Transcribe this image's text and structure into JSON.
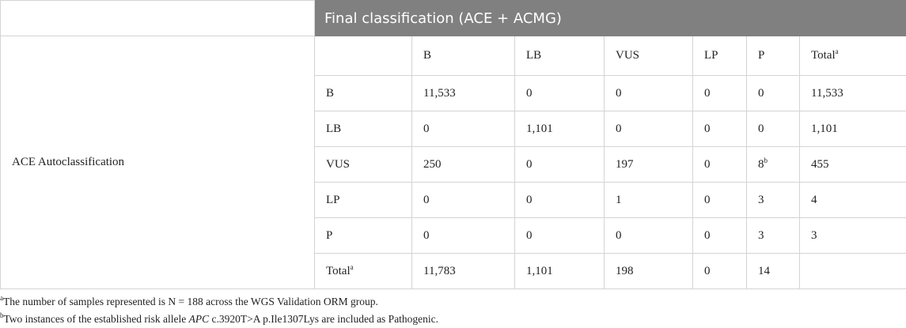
{
  "table": {
    "column_group_header": "Final classification (ACE + ACMG)",
    "row_group_header": "ACE Autoclassification",
    "columns": [
      {
        "text": "B"
      },
      {
        "text": "LB"
      },
      {
        "text": "VUS"
      },
      {
        "text": "LP"
      },
      {
        "text": "P"
      },
      {
        "text": "Total",
        "sup": "a"
      }
    ],
    "rows": [
      {
        "label": {
          "text": "B"
        },
        "cells": [
          {
            "text": "11,533"
          },
          {
            "text": "0"
          },
          {
            "text": "0"
          },
          {
            "text": "0"
          },
          {
            "text": "0"
          },
          {
            "text": "11,533"
          }
        ]
      },
      {
        "label": {
          "text": "LB"
        },
        "cells": [
          {
            "text": "0"
          },
          {
            "text": "1,101"
          },
          {
            "text": "0"
          },
          {
            "text": "0"
          },
          {
            "text": "0"
          },
          {
            "text": "1,101"
          }
        ]
      },
      {
        "label": {
          "text": "VUS"
        },
        "cells": [
          {
            "text": "250"
          },
          {
            "text": "0"
          },
          {
            "text": "197"
          },
          {
            "text": "0"
          },
          {
            "text": "8",
            "sup": "b"
          },
          {
            "text": "455"
          }
        ]
      },
      {
        "label": {
          "text": "LP"
        },
        "cells": [
          {
            "text": "0"
          },
          {
            "text": "0"
          },
          {
            "text": "1"
          },
          {
            "text": "0"
          },
          {
            "text": "3"
          },
          {
            "text": "4"
          }
        ]
      },
      {
        "label": {
          "text": "P"
        },
        "cells": [
          {
            "text": "0"
          },
          {
            "text": "0"
          },
          {
            "text": "0"
          },
          {
            "text": "0"
          },
          {
            "text": "3"
          },
          {
            "text": "3"
          }
        ]
      },
      {
        "label": {
          "text": "Total",
          "sup": "a"
        },
        "cells": [
          {
            "text": "11,783"
          },
          {
            "text": "1,101"
          },
          {
            "text": "198"
          },
          {
            "text": "0"
          },
          {
            "text": "14"
          }
        ]
      }
    ]
  },
  "footnotes": [
    {
      "marker": "a",
      "parts": [
        {
          "text": "The number of samples represented is N = 188 across the WGS Validation ORM group."
        }
      ]
    },
    {
      "marker": "b",
      "parts": [
        {
          "text": "Two instances of the established risk allele "
        },
        {
          "text": "APC",
          "italic": true
        },
        {
          "text": " c.3920T>A p.Ile1307Lys are included as Pathogenic."
        }
      ]
    }
  ]
}
